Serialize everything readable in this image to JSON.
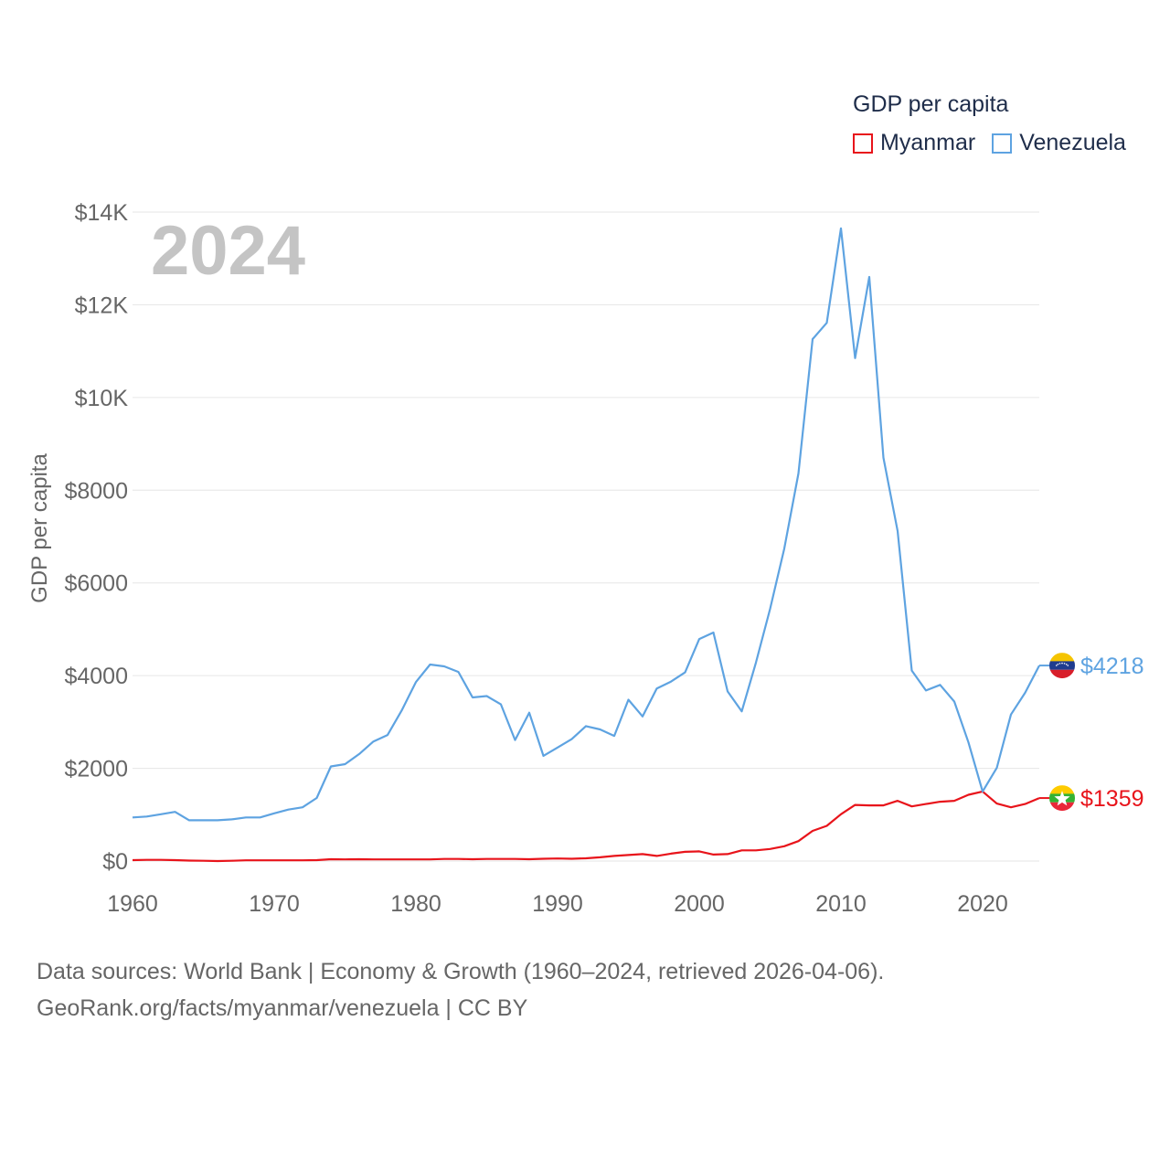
{
  "legend": {
    "title": "GDP per capita",
    "items": [
      {
        "label": "Myanmar",
        "color": "#e8141b"
      },
      {
        "label": "Venezuela",
        "color": "#5ea3e1"
      }
    ]
  },
  "source": {
    "line1": "Data sources: World Bank | Economy & Growth (1960–2024, retrieved 2026-04-06).",
    "line2": "GeoRank.org/facts/myanmar/venezuela | CC BY"
  },
  "chart_data": {
    "type": "line",
    "year_label": "2024",
    "ylabel": "GDP per capita",
    "xlabel": "",
    "xlim": [
      1960,
      2024
    ],
    "ylim": [
      0,
      14000
    ],
    "xticks": [
      1960,
      1970,
      1980,
      1990,
      2000,
      2010,
      2020
    ],
    "xtick_labels": [
      "1960",
      "1970",
      "1980",
      "1990",
      "2000",
      "2010",
      "2020"
    ],
    "yticks": [
      0,
      2000,
      4000,
      6000,
      8000,
      10000,
      12000,
      14000
    ],
    "ytick_labels": [
      "$0",
      "$2000",
      "$4000",
      "$6000",
      "$8000",
      "$10K",
      "$12K",
      "$14K"
    ],
    "grid": true,
    "series": [
      {
        "name": "Myanmar",
        "color": "#e8141b",
        "end_label": "$1359",
        "values": [
          [
            1960,
            20
          ],
          [
            1961,
            25
          ],
          [
            1962,
            25
          ],
          [
            1963,
            20
          ],
          [
            1964,
            10
          ],
          [
            1965,
            5
          ],
          [
            1966,
            0
          ],
          [
            1967,
            5
          ],
          [
            1968,
            15
          ],
          [
            1969,
            15
          ],
          [
            1970,
            15
          ],
          [
            1971,
            15
          ],
          [
            1972,
            15
          ],
          [
            1973,
            20
          ],
          [
            1974,
            40
          ],
          [
            1975,
            35
          ],
          [
            1976,
            40
          ],
          [
            1977,
            35
          ],
          [
            1978,
            35
          ],
          [
            1979,
            35
          ],
          [
            1980,
            35
          ],
          [
            1981,
            35
          ],
          [
            1982,
            45
          ],
          [
            1983,
            45
          ],
          [
            1984,
            40
          ],
          [
            1985,
            45
          ],
          [
            1986,
            45
          ],
          [
            1987,
            45
          ],
          [
            1988,
            40
          ],
          [
            1989,
            50
          ],
          [
            1990,
            55
          ],
          [
            1991,
            50
          ],
          [
            1992,
            60
          ],
          [
            1993,
            80
          ],
          [
            1994,
            110
          ],
          [
            1995,
            130
          ],
          [
            1996,
            150
          ],
          [
            1997,
            110
          ],
          [
            1998,
            160
          ],
          [
            1999,
            200
          ],
          [
            2000,
            210
          ],
          [
            2001,
            140
          ],
          [
            2002,
            150
          ],
          [
            2003,
            230
          ],
          [
            2004,
            230
          ],
          [
            2005,
            260
          ],
          [
            2006,
            320
          ],
          [
            2007,
            430
          ],
          [
            2008,
            650
          ],
          [
            2009,
            760
          ],
          [
            2010,
            1010
          ],
          [
            2011,
            1210
          ],
          [
            2012,
            1200
          ],
          [
            2013,
            1200
          ],
          [
            2014,
            1300
          ],
          [
            2015,
            1180
          ],
          [
            2016,
            1230
          ],
          [
            2017,
            1280
          ],
          [
            2018,
            1300
          ],
          [
            2019,
            1430
          ],
          [
            2020,
            1500
          ],
          [
            2021,
            1240
          ],
          [
            2022,
            1160
          ],
          [
            2023,
            1230
          ],
          [
            2024,
            1359
          ]
        ]
      },
      {
        "name": "Venezuela",
        "color": "#5ea3e1",
        "end_label": "$4218",
        "values": [
          [
            1960,
            940
          ],
          [
            1961,
            960
          ],
          [
            1962,
            1010
          ],
          [
            1963,
            1060
          ],
          [
            1964,
            880
          ],
          [
            1965,
            880
          ],
          [
            1966,
            880
          ],
          [
            1967,
            900
          ],
          [
            1968,
            940
          ],
          [
            1969,
            940
          ],
          [
            1970,
            1030
          ],
          [
            1971,
            1110
          ],
          [
            1972,
            1160
          ],
          [
            1973,
            1360
          ],
          [
            1974,
            2040
          ],
          [
            1975,
            2090
          ],
          [
            1976,
            2310
          ],
          [
            1977,
            2580
          ],
          [
            1978,
            2720
          ],
          [
            1979,
            3250
          ],
          [
            1980,
            3860
          ],
          [
            1981,
            4240
          ],
          [
            1982,
            4200
          ],
          [
            1983,
            4080
          ],
          [
            1984,
            3530
          ],
          [
            1985,
            3560
          ],
          [
            1986,
            3380
          ],
          [
            1987,
            2610
          ],
          [
            1988,
            3200
          ],
          [
            1989,
            2270
          ],
          [
            1990,
            2450
          ],
          [
            1991,
            2630
          ],
          [
            1992,
            2910
          ],
          [
            1993,
            2840
          ],
          [
            1994,
            2700
          ],
          [
            1995,
            3480
          ],
          [
            1996,
            3120
          ],
          [
            1997,
            3720
          ],
          [
            1998,
            3870
          ],
          [
            1999,
            4070
          ],
          [
            2000,
            4790
          ],
          [
            2001,
            4930
          ],
          [
            2002,
            3660
          ],
          [
            2003,
            3230
          ],
          [
            2004,
            4280
          ],
          [
            2005,
            5440
          ],
          [
            2006,
            6740
          ],
          [
            2007,
            8360
          ],
          [
            2008,
            11260
          ],
          [
            2009,
            11610
          ],
          [
            2010,
            13650
          ],
          [
            2011,
            10850
          ],
          [
            2012,
            12600
          ],
          [
            2013,
            8700
          ],
          [
            2014,
            7120
          ],
          [
            2015,
            4110
          ],
          [
            2016,
            3680
          ],
          [
            2017,
            3800
          ],
          [
            2018,
            3440
          ],
          [
            2019,
            2560
          ],
          [
            2020,
            1500
          ],
          [
            2021,
            2010
          ],
          [
            2022,
            3160
          ],
          [
            2023,
            3630
          ],
          [
            2024,
            4218
          ]
        ]
      }
    ]
  }
}
